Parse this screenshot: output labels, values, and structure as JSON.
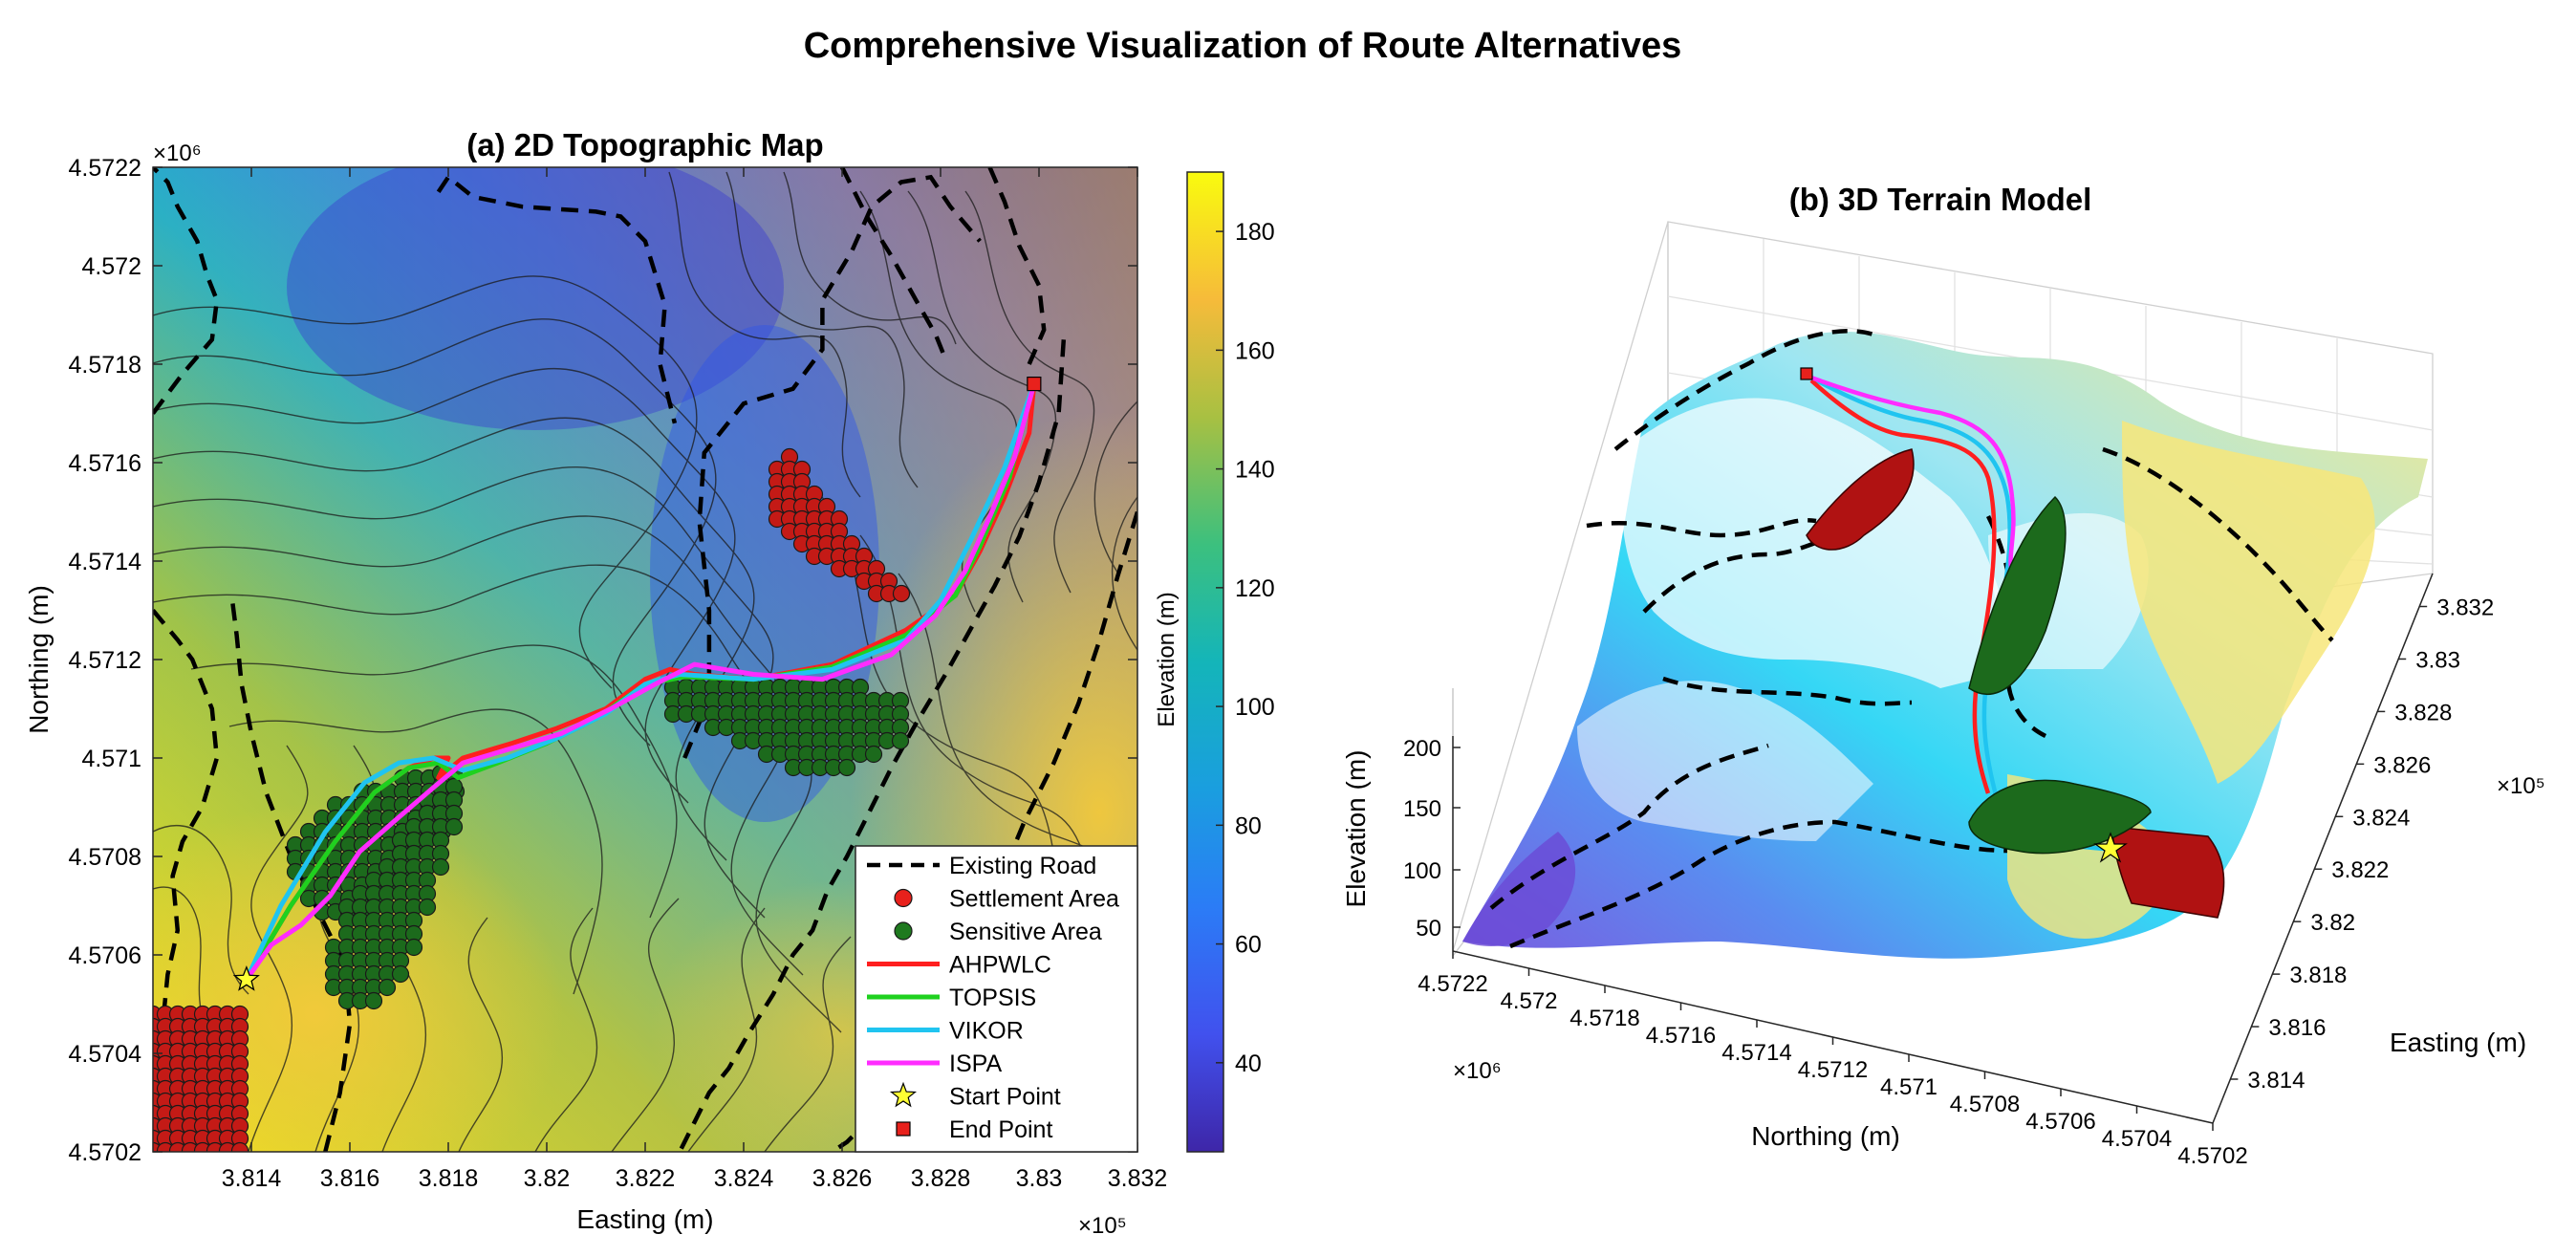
{
  "figure": {
    "title": "Comprehensive Visualization of Route Alternatives"
  },
  "chart_data": [
    {
      "panel": "a",
      "type": "contour-map",
      "title": "(a) 2D Topographic Map",
      "xlabel": "Easting (m)",
      "ylabel": "Northing (m)",
      "x_exponent": "×10⁵",
      "y_exponent": "×10⁶",
      "xlim": [
        381200,
        383200
      ],
      "ylim": [
        4570200,
        4572200
      ],
      "xticks": [
        381400,
        381600,
        381800,
        382000,
        382200,
        382400,
        382600,
        382800,
        383000,
        383200
      ],
      "xtick_labels": [
        "3.814",
        "3.816",
        "3.818",
        "3.82",
        "3.822",
        "3.824",
        "3.826",
        "3.828",
        "3.83",
        "3.832"
      ],
      "yticks": [
        4570200,
        4570400,
        4570600,
        4570800,
        4571000,
        4571200,
        4571400,
        4571600,
        4571800,
        4572000,
        4572200
      ],
      "ytick_labels": [
        "4.5702",
        "4.5704",
        "4.5706",
        "4.5708",
        "4.571",
        "4.5712",
        "4.5714",
        "4.5716",
        "4.5718",
        "4.572",
        "4.5722"
      ],
      "colorbar": {
        "label": "Elevation (m)",
        "range": [
          25,
          190
        ],
        "ticks": [
          40,
          60,
          80,
          100,
          120,
          140,
          160,
          180
        ],
        "colormap": "parula"
      },
      "legend": {
        "placement": "bottom-right",
        "entries": [
          {
            "label": "Existing Road",
            "style": "dashed",
            "color": "#000000"
          },
          {
            "label": "Settlement Area",
            "style": "marker-circle",
            "color": "#e8211c"
          },
          {
            "label": "Sensitive Area",
            "style": "marker-circle",
            "color": "#1f7a1f"
          },
          {
            "label": "AHPWLC",
            "style": "line",
            "color": "#ff1f1f"
          },
          {
            "label": "TOPSIS",
            "style": "line",
            "color": "#1fd11f"
          },
          {
            "label": "VIKOR",
            "style": "line",
            "color": "#20c4f0"
          },
          {
            "label": "ISPA",
            "style": "line",
            "color": "#ff2cff"
          },
          {
            "label": "Start Point",
            "style": "marker-star",
            "color": "#ffff33"
          },
          {
            "label": "End Point",
            "style": "marker-square",
            "color": "#e8211c"
          }
        ]
      },
      "start_point": [
        381390,
        4570550
      ],
      "end_point": [
        382990,
        4571760
      ],
      "series": [
        {
          "name": "AHPWLC",
          "color": "#ff1f1f",
          "x": [
            381390,
            381480,
            381570,
            381650,
            381720,
            381770,
            381800,
            381780,
            381830,
            381930,
            382020,
            382120,
            382200,
            382250,
            382300,
            382420,
            382580,
            382730,
            382830,
            382880,
            382930,
            382980,
            382990
          ],
          "y": [
            4570550,
            4570700,
            4570830,
            4570930,
            4570980,
            4571000,
            4571000,
            4570960,
            4571000,
            4571030,
            4571060,
            4571100,
            4571160,
            4571180,
            4571170,
            4571160,
            4571190,
            4571260,
            4571330,
            4571420,
            4571530,
            4571660,
            4571760
          ]
        },
        {
          "name": "TOPSIS",
          "color": "#1fd11f",
          "x": [
            381390,
            381480,
            381570,
            381650,
            381720,
            381780,
            381820,
            381900,
            382000,
            382100,
            382200,
            382280,
            382420,
            382580,
            382730,
            382830,
            382880,
            382940,
            382990
          ],
          "y": [
            4570550,
            4570700,
            4570830,
            4570930,
            4570980,
            4570990,
            4570960,
            4570990,
            4571030,
            4571080,
            4571150,
            4571165,
            4571160,
            4571185,
            4571250,
            4571330,
            4571430,
            4571570,
            4571760
          ]
        },
        {
          "name": "VIKOR",
          "color": "#20c4f0",
          "x": [
            381390,
            381460,
            381550,
            381630,
            381700,
            381770,
            381830,
            381920,
            382020,
            382120,
            382200,
            382270,
            382420,
            382580,
            382730,
            382800,
            382860,
            382930,
            382990
          ],
          "y": [
            4570550,
            4570700,
            4570850,
            4570950,
            4570990,
            4571000,
            4570975,
            4571000,
            4571040,
            4571090,
            4571150,
            4571170,
            4571160,
            4571180,
            4571240,
            4571320,
            4571440,
            4571590,
            4571760
          ]
        },
        {
          "name": "ISPA",
          "color": "#ff2cff",
          "x": [
            381390,
            381440,
            381500,
            381560,
            381620,
            381700,
            381770,
            381830,
            381930,
            382030,
            382130,
            382220,
            382300,
            382420,
            382560,
            382700,
            382790,
            382850,
            382900,
            382950,
            382990
          ],
          "y": [
            4570550,
            4570620,
            4570660,
            4570720,
            4570810,
            4570880,
            4570940,
            4570990,
            4571020,
            4571050,
            4571100,
            4571150,
            4571190,
            4571170,
            4571160,
            4571210,
            4571290,
            4571380,
            4571490,
            4571610,
            4571760
          ]
        }
      ],
      "existing_roads": [
        {
          "x": [
            381200,
            381260,
            381320,
            381330,
            381310,
            381290,
            381250,
            381230,
            381200
          ],
          "y": [
            4571700,
            4571780,
            4571850,
            4571930,
            4571980,
            4572050,
            4572120,
            4572170,
            4572200
          ]
        },
        {
          "x": [
            381200,
            381250,
            381280,
            381300,
            381320,
            381330,
            381300,
            381260,
            381240,
            381250,
            381230,
            381220
          ],
          "y": [
            4571300,
            4571240,
            4571200,
            4571150,
            4571100,
            4571000,
            4570900,
            4570830,
            4570760,
            4570650,
            4570560,
            4570460
          ]
        },
        {
          "x": [
            381550,
            381580,
            381600,
            381590,
            381540,
            381480,
            381430,
            381400,
            381380,
            381370,
            381360
          ],
          "y": [
            4570200,
            4570320,
            4570460,
            4570580,
            4570680,
            4570800,
            4570930,
            4571050,
            4571150,
            4571250,
            4571330
          ]
        },
        {
          "x": [
            381780,
            381800,
            381850,
            381950,
            382100,
            382150,
            382200,
            382240,
            382230,
            382260
          ],
          "y": [
            4572150,
            4572180,
            4572140,
            4572120,
            4572110,
            4572100,
            4572050,
            4571920,
            4571800,
            4571680
          ]
        },
        {
          "x": [
            382280,
            382330,
            382330,
            382310,
            382320,
            382400,
            382500,
            382560,
            382560,
            382620,
            382660,
            382720,
            382780,
            382820,
            382880
          ],
          "y": [
            4571000,
            4571120,
            4571300,
            4571480,
            4571620,
            4571720,
            4571750,
            4571830,
            4571930,
            4572030,
            4572120,
            4572170,
            4572180,
            4572120,
            4572050
          ]
        },
        {
          "x": [
            382600,
            382650,
            382700,
            382750,
            382790,
            382810
          ],
          "y": [
            4572200,
            4572100,
            4572020,
            4571930,
            4571860,
            4571810
          ]
        },
        {
          "x": [
            382900,
            382930,
            382960,
            383000,
            383010,
            382980
          ],
          "y": [
            4572200,
            4572130,
            4572040,
            4571960,
            4571870,
            4571800
          ]
        },
        {
          "x": [
            383050,
            383040,
            383000,
            382960,
            382910,
            382860,
            382810,
            382750,
            382700,
            382650,
            382610,
            382570,
            382540,
            382500,
            382460,
            382410,
            382370,
            382330,
            382300,
            382270
          ],
          "y": [
            4571850,
            4571700,
            4571560,
            4571450,
            4571350,
            4571260,
            4571170,
            4571070,
            4570980,
            4570880,
            4570800,
            4570730,
            4570650,
            4570600,
            4570520,
            4570440,
            4570370,
            4570320,
            4570260,
            4570200
          ]
        },
        {
          "x": [
            383200,
            383160,
            383120,
            383080,
            383030,
            382970,
            382920,
            382880,
            382850,
            382810,
            382760,
            382720,
            382680,
            382650,
            382610,
            382580
          ],
          "y": [
            4571500,
            4571370,
            4571230,
            4571110,
            4570990,
            4570870,
            4570750,
            4570650,
            4570570,
            4570480,
            4570410,
            4570360,
            4570300,
            4570260,
            4570220,
            4570200
          ]
        }
      ]
    },
    {
      "panel": "b",
      "type": "surface3d",
      "title": "(b) 3D Terrain Model",
      "xlabel": "Northing (m)",
      "ylabel": "Easting (m)",
      "zlabel": "Elevation (m)",
      "x_exponent": "×10⁶",
      "y_exponent": "×10⁵",
      "xtick_labels": [
        "4.5722",
        "4.572",
        "4.5718",
        "4.5716",
        "4.5714",
        "4.5712",
        "4.571",
        "4.5708",
        "4.5706",
        "4.5704",
        "4.5702"
      ],
      "ytick_labels": [
        "3.814",
        "3.816",
        "3.818",
        "3.82",
        "3.822",
        "3.824",
        "3.826",
        "3.828",
        "3.83",
        "3.832"
      ],
      "ztick_labels": [
        "50",
        "100",
        "150",
        "200"
      ],
      "grid": true
    }
  ]
}
